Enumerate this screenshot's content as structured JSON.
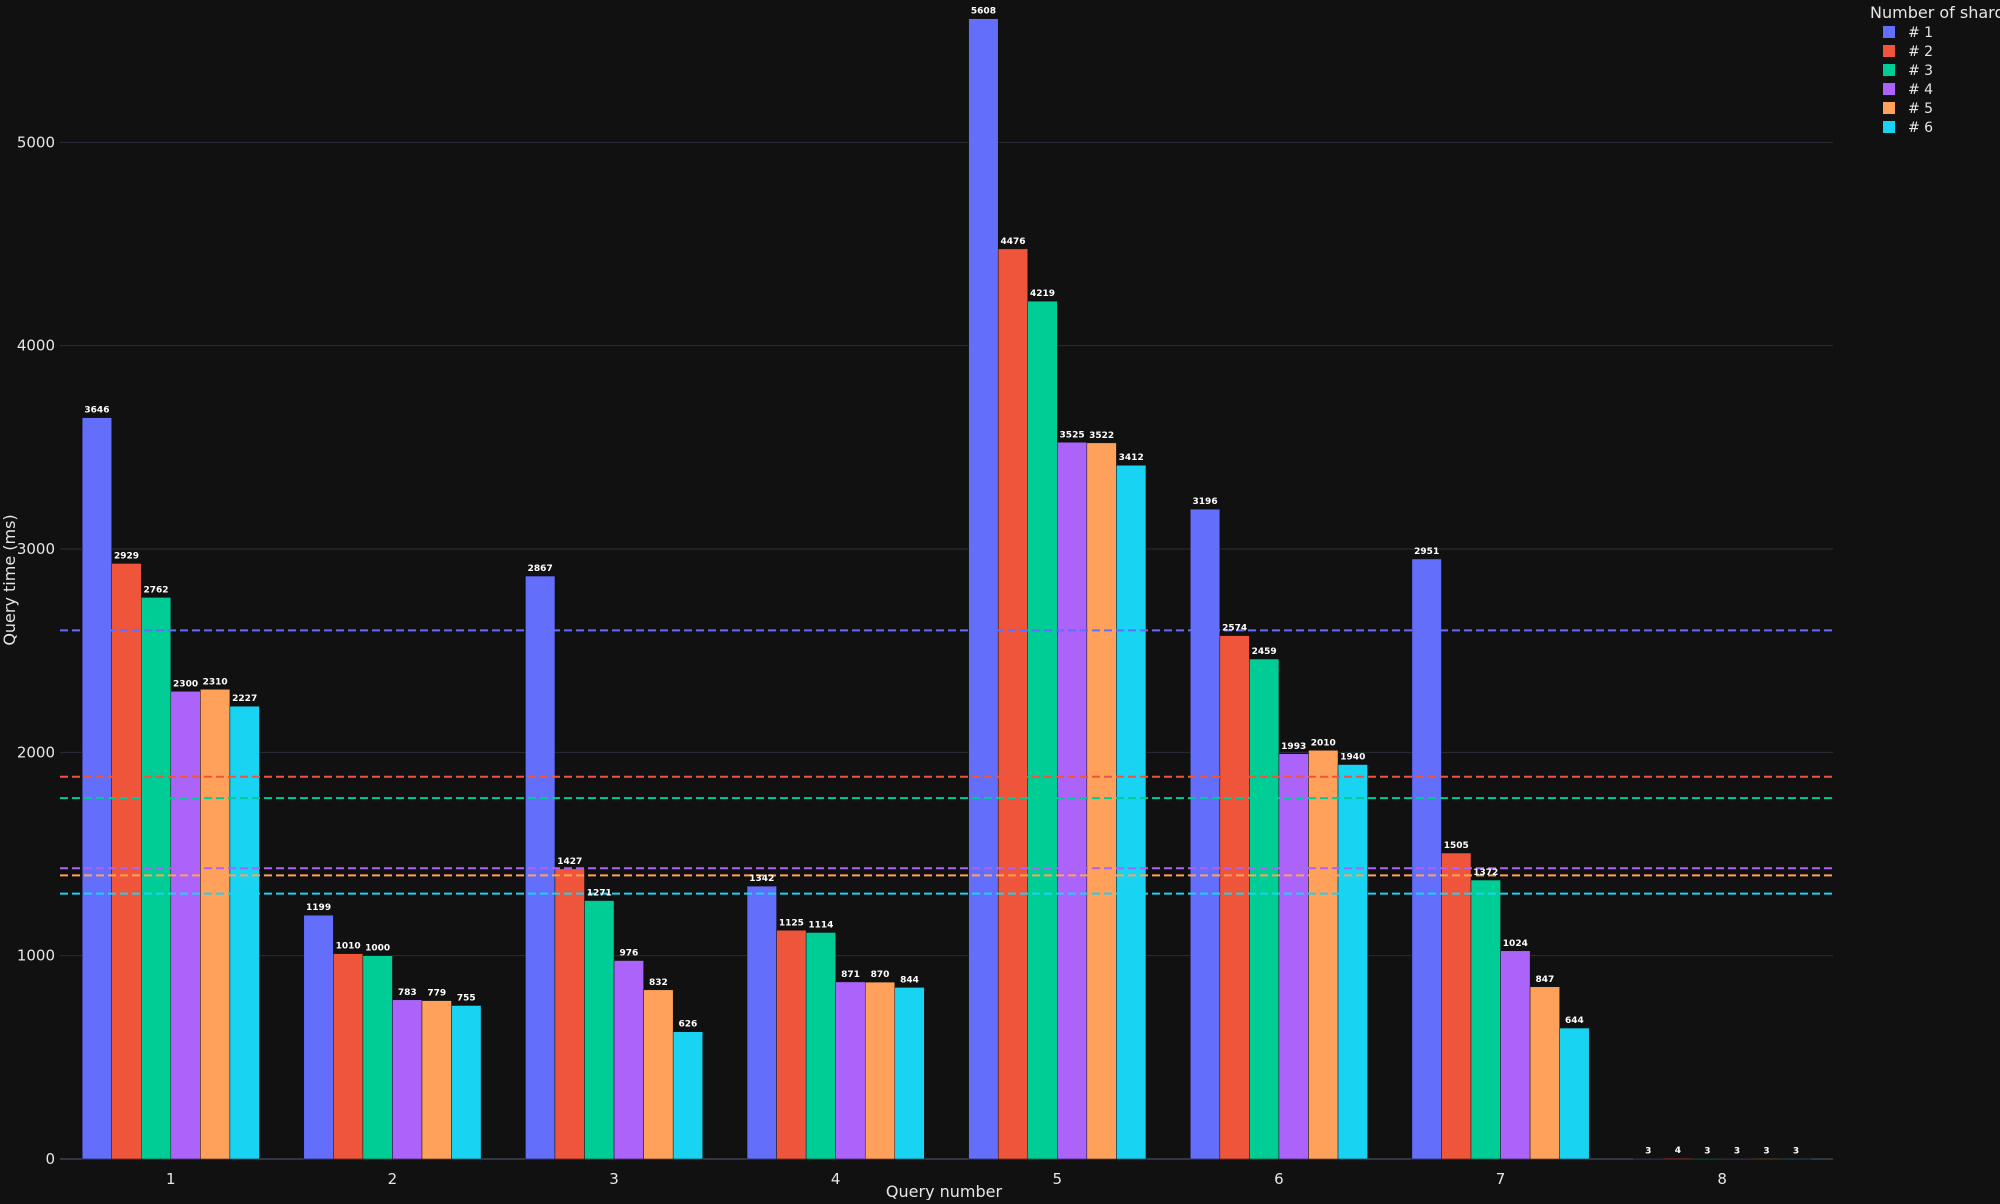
{
  "chart_data": {
    "type": "bar",
    "xlabel": "Query number",
    "ylabel": "Query time (ms)",
    "categories": [
      "1",
      "2",
      "3",
      "4",
      "5",
      "6",
      "7",
      "8"
    ],
    "ylim": [
      0,
      5700
    ],
    "yticks": [
      0,
      1000,
      2000,
      3000,
      4000,
      5000
    ],
    "grid": true,
    "legend": {
      "title": "Number of shards",
      "placement": "top-right"
    },
    "series": [
      {
        "name": "# 1",
        "color": "#636efa",
        "values": [
          3646,
          1199,
          2867,
          1342,
          5608,
          3196,
          2951,
          3
        ],
        "mean_line": 2600
      },
      {
        "name": "# 2",
        "color": "#ef553b",
        "values": [
          2929,
          1010,
          1427,
          1125,
          4476,
          2574,
          1505,
          4
        ],
        "mean_line": 1880
      },
      {
        "name": "# 3",
        "color": "#00cc96",
        "values": [
          2762,
          1000,
          1271,
          1114,
          4219,
          2459,
          1372,
          3
        ],
        "mean_line": 1775
      },
      {
        "name": "# 4",
        "color": "#ab63fa",
        "values": [
          2300,
          783,
          976,
          871,
          3525,
          1993,
          1024,
          3
        ],
        "mean_line": 1430
      },
      {
        "name": "# 5",
        "color": "#ffa15a",
        "values": [
          2310,
          779,
          832,
          870,
          3522,
          2010,
          847,
          3
        ],
        "mean_line": 1395
      },
      {
        "name": "# 6",
        "color": "#19d3f3",
        "values": [
          2227,
          755,
          626,
          844,
          3412,
          1940,
          644,
          3
        ],
        "mean_line": 1305
      }
    ]
  }
}
